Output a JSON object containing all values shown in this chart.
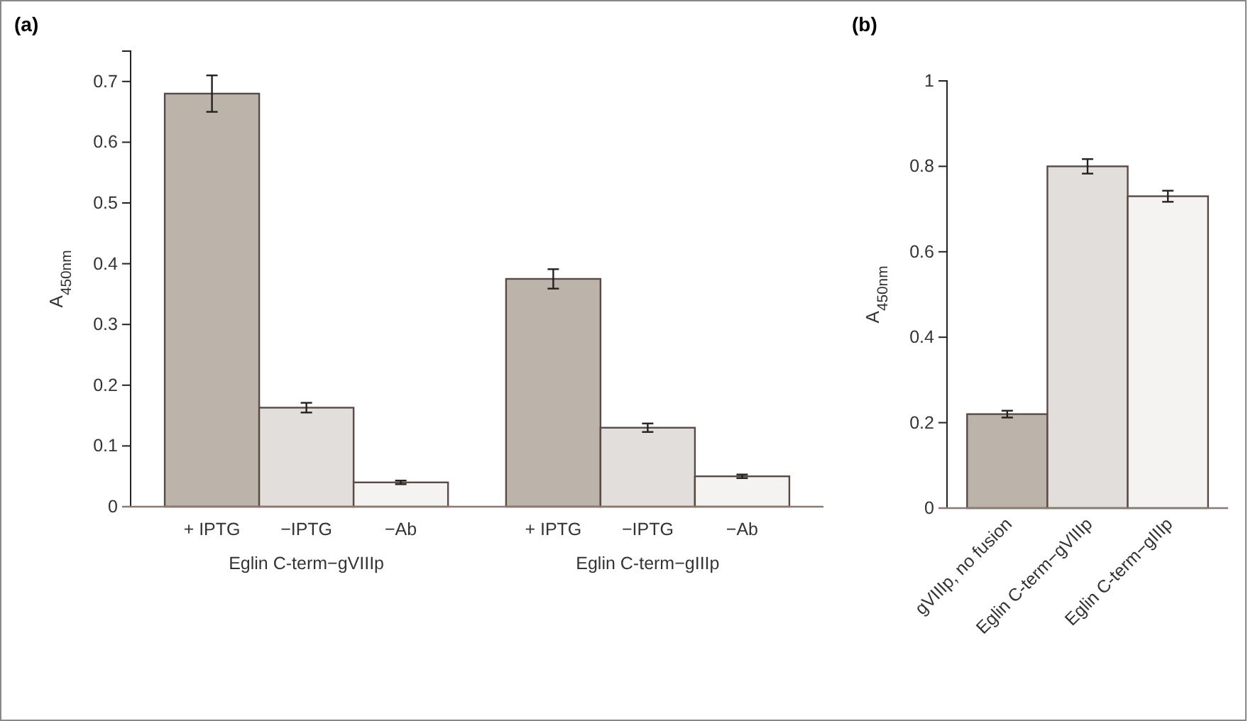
{
  "chart_data": [
    {
      "type": "bar",
      "title": "(a)",
      "ylabel": "A$_{450nm}$",
      "categories": [
        "Eglin C-term−gVIIIp",
        "Eglin C-term−gIIIp"
      ],
      "series": [
        {
          "name": "+ IPTG",
          "color": "#bcb3ab",
          "values": [
            0.68,
            0.375
          ],
          "errors": [
            0.03,
            0.016
          ]
        },
        {
          "name": "−IPTG",
          "color": "#e2dedb",
          "values": [
            0.163,
            0.13
          ],
          "errors": [
            0.008,
            0.007
          ]
        },
        {
          "name": "−Ab",
          "color": "#f4f3f1",
          "values": [
            0.04,
            0.05
          ],
          "errors": [
            0.003,
            0.003
          ]
        }
      ],
      "ylim": [
        0,
        0.75
      ],
      "yticks": [
        0,
        0.1,
        0.2,
        0.3,
        0.4,
        0.5,
        0.6,
        0.7
      ],
      "grid": false
    },
    {
      "type": "bar",
      "title": "(b)",
      "ylabel": "A$_{450nm}$",
      "categories": [
        "gVIIIp, no fusion",
        "Eglin C-term−gVIIIp",
        "Eglin C-term−gIIIp"
      ],
      "values": [
        0.22,
        0.8,
        0.73
      ],
      "errors": [
        0.008,
        0.017,
        0.013
      ],
      "colors": [
        "#bcb3ab",
        "#e2dedb",
        "#f4f3f1"
      ],
      "ylim": [
        0,
        1
      ],
      "yticks": [
        0,
        0.2,
        0.4,
        0.6,
        0.8,
        1
      ],
      "grid": false
    }
  ]
}
